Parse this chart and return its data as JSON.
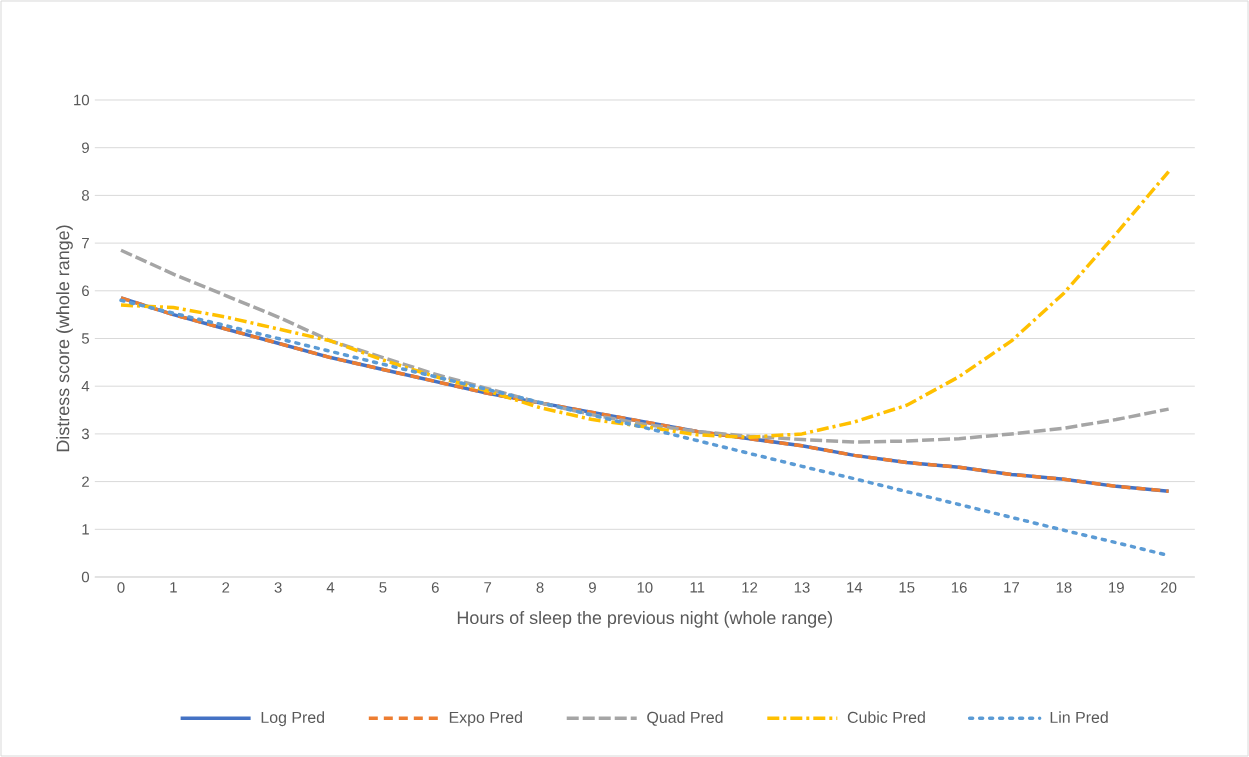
{
  "chart_data": {
    "type": "line",
    "xlabel": "Hours of sleep the previous night (whole range)",
    "ylabel": "Distress score (whole range)",
    "categories": [
      "0",
      "1",
      "2",
      "3",
      "4",
      "5",
      "6",
      "7",
      "8",
      "9",
      "10",
      "11",
      "12",
      "13",
      "14",
      "15",
      "16",
      "17",
      "18",
      "19",
      "20"
    ],
    "series": [
      {
        "name": "Log Pred",
        "color": "#4472c4",
        "line_style": "solid",
        "values": [
          5.85,
          5.5,
          5.2,
          4.9,
          4.6,
          4.35,
          4.1,
          3.85,
          3.65,
          3.45,
          3.25,
          3.05,
          2.9,
          2.75,
          2.55,
          2.4,
          2.3,
          2.15,
          2.05,
          1.9,
          1.8
        ]
      },
      {
        "name": "Expo Pred",
        "color": "#ed7d31",
        "line_style": "dashed",
        "values": [
          5.85,
          5.5,
          5.2,
          4.9,
          4.6,
          4.35,
          4.1,
          3.85,
          3.65,
          3.45,
          3.25,
          3.05,
          2.9,
          2.75,
          2.55,
          2.4,
          2.3,
          2.15,
          2.05,
          1.9,
          1.8
        ]
      },
      {
        "name": "Quad Pred",
        "color": "#a5a5a5",
        "line_style": "longdash",
        "values": [
          6.85,
          6.35,
          5.9,
          5.45,
          4.95,
          4.6,
          4.25,
          3.95,
          3.65,
          3.4,
          3.2,
          3.05,
          2.95,
          2.88,
          2.83,
          2.85,
          2.9,
          3.0,
          3.12,
          3.3,
          3.52
        ]
      },
      {
        "name": "Cubic Pred",
        "color": "#ffc000",
        "line_style": "dashdot",
        "values": [
          5.7,
          5.65,
          5.45,
          5.2,
          4.95,
          4.55,
          4.2,
          3.9,
          3.55,
          3.3,
          3.15,
          2.98,
          2.93,
          3.0,
          3.25,
          3.6,
          4.2,
          4.95,
          5.95,
          7.2,
          8.5
        ]
      },
      {
        "name": "Lin Pred",
        "color": "#5b9bd5",
        "line_style": "dotted",
        "values": [
          5.8,
          5.53,
          5.27,
          5.0,
          4.73,
          4.46,
          4.2,
          3.93,
          3.66,
          3.39,
          3.13,
          2.86,
          2.59,
          2.32,
          2.06,
          1.79,
          1.52,
          1.25,
          0.98,
          0.72,
          0.45
        ]
      }
    ],
    "ylim": [
      0,
      10
    ],
    "yticks": [
      0,
      1,
      2,
      3,
      4,
      5,
      6,
      7,
      8,
      9,
      10
    ],
    "grid": "y",
    "legend": "bottom",
    "marker": "none"
  }
}
